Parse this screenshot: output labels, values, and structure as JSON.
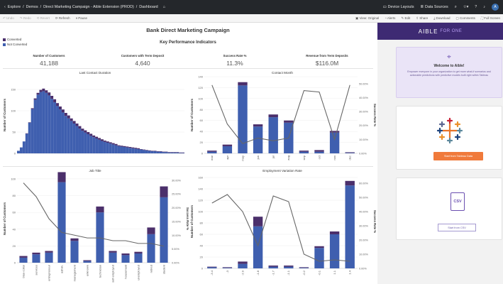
{
  "topbar": {
    "breadcrumb": [
      "Explore",
      "Demos",
      "Direct Marketing Campaign - Aible Extension (PROD)",
      "Dashboard"
    ],
    "items": [
      "Device Layouts",
      "Data Sources"
    ],
    "avatar": "A"
  },
  "toolbar": {
    "left": [
      "Undo",
      "Redo",
      "Revert",
      "Refresh",
      "Pause"
    ],
    "right": [
      "View: Original",
      "Alerts",
      "Edit",
      "Share",
      "Download",
      "Comments",
      "Full Screen"
    ]
  },
  "dashboard": {
    "title": "Bank Direct Marketing Campaign",
    "legend": [
      {
        "label": "Converted",
        "color": "#4b2f6b"
      },
      {
        "label": "Not Converted",
        "color": "#3f5faf"
      }
    ],
    "kpi_title": "Key Performance Indicators",
    "kpis": [
      {
        "label": "Number of Customers",
        "value": "41,188"
      },
      {
        "label": "Customers with Term Deposit",
        "value": "4,640"
      },
      {
        "label": "Success Rate %",
        "value": "11.3%"
      },
      {
        "label": "Revenue from Term Deposits",
        "value": "$116.0M"
      }
    ]
  },
  "colors": {
    "converted": "#4b2f6b",
    "not_converted": "#3f5faf",
    "line": "#666666"
  },
  "chart_data": [
    {
      "type": "bar",
      "title": "Last Contact Duration",
      "ylabel": "Number of Customers",
      "yticks": [
        0,
        50,
        100,
        150
      ],
      "ylim": [
        0,
        180
      ],
      "series": [
        {
          "name": "Not Converted",
          "values": [
            6,
            14,
            28,
            46,
            72,
            104,
            126,
            138,
            144,
            146,
            142,
            136,
            128,
            120,
            111,
            103,
            96,
            88,
            82,
            76,
            70,
            64,
            58,
            53,
            49,
            45,
            41,
            38,
            35,
            32,
            29,
            27,
            25,
            23,
            21,
            19,
            17,
            16,
            15,
            14,
            13,
            12,
            11,
            10,
            9,
            8,
            7,
            6,
            5,
            5,
            4,
            4,
            3,
            3,
            2,
            2,
            2,
            2,
            1,
            1
          ]
        },
        {
          "name": "Converted",
          "values": [
            0,
            0,
            0,
            1,
            1,
            2,
            3,
            4,
            5,
            6,
            6,
            7,
            7,
            7,
            7,
            7,
            7,
            7,
            7,
            6,
            6,
            6,
            6,
            5,
            5,
            5,
            5,
            4,
            4,
            4,
            4,
            3,
            3,
            3,
            3,
            3,
            2,
            2,
            2,
            2,
            2,
            2,
            2,
            2,
            1,
            1,
            1,
            1,
            1,
            1,
            1,
            1,
            1,
            1,
            1,
            1,
            1,
            1,
            1,
            1
          ]
        }
      ]
    },
    {
      "type": "bar",
      "title": "Contact Month",
      "ylabel": "Number of Customers",
      "y2label": "Success Rate %",
      "yticks": [
        0,
        20,
        40,
        60,
        80,
        100,
        120,
        140
      ],
      "y2ticks": [
        "0.00%",
        "10.00%",
        "20.00%",
        "30.00%",
        "40.00%",
        "50.00%"
      ],
      "ylim": [
        0,
        140
      ],
      "y2lim": [
        0,
        55
      ],
      "categories": [
        "mar",
        "apr",
        "may",
        "jun",
        "jul",
        "aug",
        "sep",
        "oct",
        "nov",
        "dec"
      ],
      "series": [
        {
          "name": "Not Converted",
          "values": [
            3,
            13,
            124,
            49,
            66,
            56,
            3,
            3,
            38,
            1
          ]
        },
        {
          "name": "Converted",
          "values": [
            2,
            3,
            6,
            4,
            5,
            4,
            2,
            3,
            3,
            1
          ]
        },
        {
          "name": "Success Rate %",
          "values": [
            49,
            21,
            7,
            11,
            9,
            11,
            45,
            44,
            10,
            49
          ]
        }
      ]
    },
    {
      "type": "bar",
      "title": "Job Title",
      "ylabel": "Number of Customers",
      "y2label": "Success Rate %",
      "yticks": [
        0,
        20,
        40,
        60,
        80,
        100
      ],
      "y2ticks": [
        "0.00%",
        "5.00%",
        "10.00%",
        "15.00%",
        "20.00%",
        "25.00%",
        "30.00%"
      ],
      "ylim": [
        0,
        105
      ],
      "y2lim": [
        0,
        32
      ],
      "categories": [
        "blue-collar",
        "services",
        "entrepreneur",
        "admin.",
        "management",
        "unknown",
        "technician",
        "self-employed",
        "housemaid",
        "unemployed",
        "retired",
        "student"
      ],
      "series": [
        {
          "name": "Not Converted",
          "values": [
            6,
            10,
            12,
            96,
            26,
            2,
            60,
            12,
            9,
            11,
            34,
            78
          ]
        },
        {
          "name": "Converted",
          "values": [
            2,
            2,
            2,
            12,
            3,
            1,
            7,
            2,
            2,
            2,
            8,
            13
          ]
        },
        {
          "name": "Success Rate %",
          "values": [
            29,
            24,
            16,
            11,
            10,
            9,
            9,
            8,
            8,
            7,
            7,
            6
          ]
        }
      ]
    },
    {
      "type": "bar",
      "title": "Employment Variation Rate",
      "ylabel": "Number of Customers",
      "y2label": "Success Rate %",
      "yticks": [
        0,
        20,
        40,
        60,
        80,
        100,
        120,
        140,
        160
      ],
      "y2ticks": [
        "0.00%",
        "10.00%",
        "20.00%",
        "30.00%",
        "40.00%",
        "50.00%",
        "60.00%"
      ],
      "ylim": [
        0,
        165
      ],
      "y2lim": [
        0,
        66
      ],
      "categories": [
        "-3.4",
        "-3",
        "-2.9",
        "-1.8",
        "-1.7",
        "-1.1",
        "-0.2",
        "-0.1",
        "1.1",
        "1.4"
      ],
      "series": [
        {
          "name": "Not Converted",
          "values": [
            2,
            1,
            8,
            74,
            3,
            3,
            1,
            36,
            60,
            146
          ]
        },
        {
          "name": "Converted",
          "values": [
            1,
            1,
            4,
            17,
            2,
            2,
            1,
            3,
            5,
            8
          ]
        },
        {
          "name": "Success Rate %",
          "values": [
            46,
            52,
            40,
            16,
            51,
            47,
            10,
            5,
            6,
            5
          ]
        }
      ]
    }
  ],
  "sidebar": {
    "brand": "AIBLE",
    "brand_sub": "FOR ONE",
    "welcome_title": "Welcome to Aible!",
    "welcome_text": "Empower everyone in your organization to get more what-if scenarios and actionable predictions with predictive models built right within Tableau",
    "tableau_button": "Start from Tableau Data",
    "csv_label": "CSV",
    "csv_button": "Start from CSV"
  }
}
